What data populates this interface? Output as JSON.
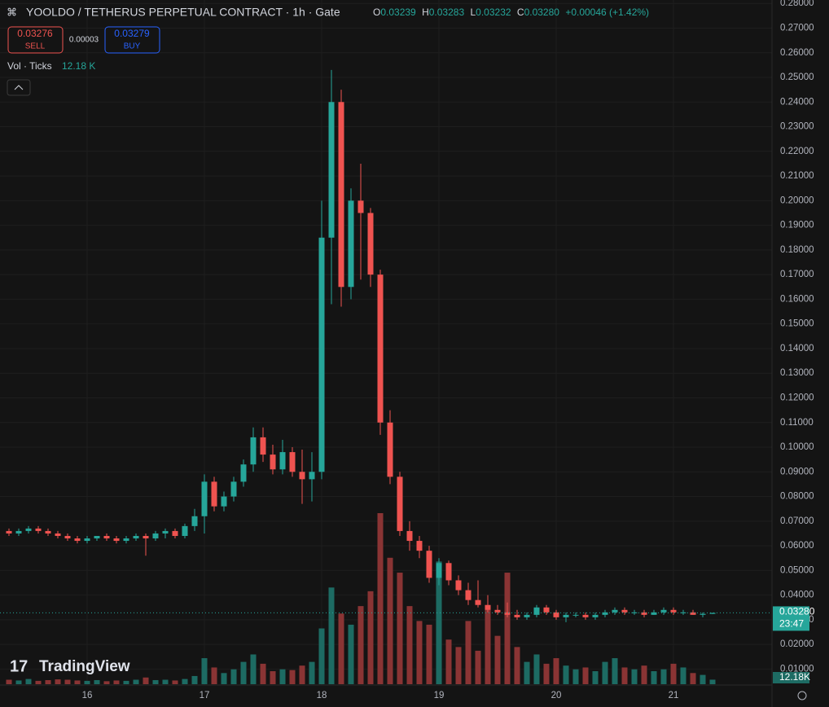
{
  "header": {
    "title": "YOOLDO / TETHERUS PERPETUAL CONTRACT · 1h · Gate",
    "legend": [
      {
        "key": "O",
        "value": "0.03239"
      },
      {
        "key": "H",
        "value": "0.03283"
      },
      {
        "key": "L",
        "value": "0.03232"
      },
      {
        "key": "C",
        "value": "0.03280"
      }
    ],
    "change": "+0.00046 (+1.42%)",
    "sell": {
      "price": "0.03276",
      "label": "SELL"
    },
    "spread": "0.00003",
    "buy": {
      "price": "0.03279",
      "label": "BUY"
    },
    "volume_label": "Vol · Ticks",
    "volume_value": "12.18 K"
  },
  "price_tag": {
    "price": "0.03280",
    "countdown": "23:47"
  },
  "volume_tag": "12.18K",
  "logo": "TradingView",
  "chart_data": {
    "type": "candlestick",
    "categories": [
      null,
      null,
      null,
      null,
      null,
      null,
      null,
      null,
      "16",
      null,
      null,
      null,
      null,
      null,
      null,
      null,
      null,
      null,
      null,
      null,
      "17",
      null,
      null,
      null,
      null,
      null,
      null,
      null,
      null,
      null,
      null,
      null,
      "18",
      null,
      null,
      null,
      null,
      null,
      null,
      null,
      null,
      null,
      null,
      null,
      "19",
      null,
      null,
      null,
      null,
      null,
      null,
      null,
      null,
      null,
      null,
      null,
      "20",
      null,
      null,
      null,
      null,
      null,
      null,
      null,
      null,
      null,
      null,
      null,
      "21",
      null,
      null,
      null,
      null
    ],
    "open": [
      0.066,
      0.065,
      0.066,
      0.067,
      0.066,
      0.065,
      0.064,
      0.063,
      0.062,
      0.063,
      0.064,
      0.063,
      0.062,
      0.063,
      0.064,
      0.063,
      0.065,
      0.066,
      0.064,
      0.068,
      0.072,
      0.086,
      0.076,
      0.08,
      0.086,
      0.093,
      0.104,
      0.097,
      0.091,
      0.098,
      0.09,
      0.087,
      0.09,
      0.185,
      0.24,
      0.165,
      0.2,
      0.195,
      0.17,
      0.11,
      0.088,
      0.066,
      0.062,
      0.058,
      0.047,
      0.053,
      0.046,
      0.042,
      0.038,
      0.036,
      0.034,
      0.033,
      0.032,
      0.031,
      0.032,
      0.035,
      0.033,
      0.031,
      0.032,
      0.032,
      0.031,
      0.032,
      0.033,
      0.034,
      0.033,
      0.033,
      0.032,
      0.033,
      0.034,
      0.033,
      0.033,
      0.032,
      0.03239
    ],
    "high": [
      0.067,
      0.067,
      0.068,
      0.068,
      0.067,
      0.066,
      0.065,
      0.064,
      0.064,
      0.064,
      0.065,
      0.064,
      0.064,
      0.065,
      0.065,
      0.066,
      0.067,
      0.067,
      0.069,
      0.075,
      0.089,
      0.088,
      0.082,
      0.088,
      0.095,
      0.108,
      0.108,
      0.101,
      0.103,
      0.1,
      0.099,
      0.098,
      0.2,
      0.253,
      0.245,
      0.205,
      0.215,
      0.197,
      0.172,
      0.115,
      0.09,
      0.07,
      0.064,
      0.06,
      0.055,
      0.054,
      0.048,
      0.045,
      0.046,
      0.04,
      0.036,
      0.037,
      0.034,
      0.033,
      0.036,
      0.036,
      0.034,
      0.033,
      0.033,
      0.033,
      0.033,
      0.034,
      0.035,
      0.035,
      0.034,
      0.034,
      0.034,
      0.035,
      0.035,
      0.034,
      0.034,
      0.033,
      0.03283
    ],
    "low": [
      0.064,
      0.064,
      0.065,
      0.065,
      0.064,
      0.063,
      0.062,
      0.061,
      0.061,
      0.062,
      0.062,
      0.061,
      0.061,
      0.062,
      0.056,
      0.062,
      0.063,
      0.063,
      0.063,
      0.066,
      0.065,
      0.074,
      0.074,
      0.078,
      0.084,
      0.09,
      0.094,
      0.089,
      0.089,
      0.088,
      0.077,
      0.078,
      0.087,
      0.158,
      0.157,
      0.16,
      0.168,
      0.165,
      0.105,
      0.085,
      0.064,
      0.058,
      0.055,
      0.045,
      0.044,
      0.044,
      0.04,
      0.036,
      0.035,
      0.033,
      0.032,
      0.031,
      0.03,
      0.03,
      0.031,
      0.032,
      0.03,
      0.029,
      0.031,
      0.03,
      0.03,
      0.031,
      0.032,
      0.032,
      0.032,
      0.031,
      0.032,
      0.032,
      0.032,
      0.032,
      0.032,
      0.031,
      0.03232
    ],
    "close": [
      0.065,
      0.066,
      0.067,
      0.066,
      0.065,
      0.064,
      0.063,
      0.062,
      0.063,
      0.064,
      0.063,
      0.062,
      0.063,
      0.064,
      0.063,
      0.065,
      0.066,
      0.064,
      0.068,
      0.072,
      0.086,
      0.076,
      0.08,
      0.086,
      0.093,
      0.104,
      0.097,
      0.091,
      0.098,
      0.09,
      0.087,
      0.09,
      0.185,
      0.24,
      0.165,
      0.2,
      0.195,
      0.17,
      0.11,
      0.088,
      0.066,
      0.062,
      0.058,
      0.047,
      0.053,
      0.046,
      0.042,
      0.038,
      0.036,
      0.034,
      0.033,
      0.032,
      0.031,
      0.032,
      0.035,
      0.033,
      0.031,
      0.032,
      0.032,
      0.031,
      0.032,
      0.033,
      0.034,
      0.033,
      0.033,
      0.032,
      0.033,
      0.034,
      0.033,
      0.033,
      0.032,
      0.0324,
      0.0328
    ],
    "volume": [
      12,
      10,
      14,
      9,
      11,
      13,
      12,
      10,
      9,
      11,
      8,
      10,
      9,
      12,
      18,
      11,
      12,
      10,
      14,
      22,
      70,
      45,
      30,
      40,
      60,
      80,
      55,
      35,
      40,
      38,
      50,
      60,
      150,
      260,
      190,
      160,
      210,
      250,
      460,
      340,
      300,
      210,
      170,
      160,
      330,
      120,
      100,
      170,
      90,
      200,
      130,
      300,
      100,
      60,
      80,
      55,
      70,
      50,
      40,
      45,
      35,
      60,
      70,
      45,
      40,
      50,
      35,
      40,
      55,
      45,
      30,
      25,
      12.18
    ],
    "up_color": "#26a69a",
    "down_color": "#ef5350",
    "up_volume_color": "#1d6b63",
    "down_volume_color": "#8a3434",
    "ylim": [
      0,
      0.28
    ],
    "yticks": [
      {
        "value": 0.01,
        "label": "0.01000"
      },
      {
        "value": 0.02,
        "label": "0.02000"
      },
      {
        "value": 0.03,
        "label": "0.03000"
      },
      {
        "value": 0.04,
        "label": "0.04000"
      },
      {
        "value": 0.05,
        "label": "0.05000"
      },
      {
        "value": 0.06,
        "label": "0.06000"
      },
      {
        "value": 0.07,
        "label": "0.07000"
      },
      {
        "value": 0.08,
        "label": "0.08000"
      },
      {
        "value": 0.09,
        "label": "0.09000"
      },
      {
        "value": 0.1,
        "label": "0.10000"
      },
      {
        "value": 0.11,
        "label": "0.11000"
      },
      {
        "value": 0.12,
        "label": "0.12000"
      },
      {
        "value": 0.13,
        "label": "0.13000"
      },
      {
        "value": 0.14,
        "label": "0.14000"
      },
      {
        "value": 0.15,
        "label": "0.15000"
      },
      {
        "value": 0.16,
        "label": "0.16000"
      },
      {
        "value": 0.17,
        "label": "0.17000"
      },
      {
        "value": 0.18,
        "label": "0.18000"
      },
      {
        "value": 0.19,
        "label": "0.19000"
      },
      {
        "value": 0.2,
        "label": "0.20000"
      },
      {
        "value": 0.21,
        "label": "0.21000"
      },
      {
        "value": 0.22,
        "label": "0.22000"
      },
      {
        "value": 0.23,
        "label": "0.23000"
      },
      {
        "value": 0.24,
        "label": "0.24000"
      },
      {
        "value": 0.25,
        "label": "0.25000"
      },
      {
        "value": 0.26,
        "label": "0.26000"
      },
      {
        "value": 0.27,
        "label": "0.27000"
      },
      {
        "value": 0.28,
        "label": "0.28000"
      }
    ],
    "grid": true
  }
}
